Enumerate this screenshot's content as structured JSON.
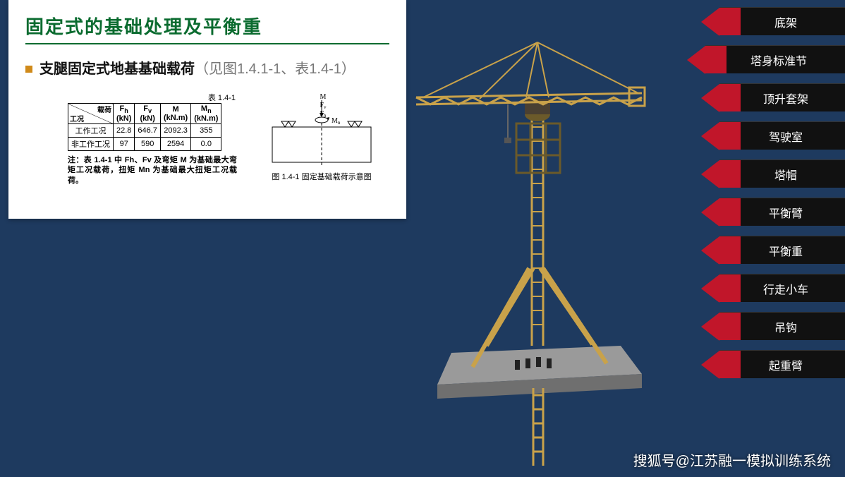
{
  "panel": {
    "title": "固定式的基础处理及平衡重",
    "bullet_main": "支腿固定式地基基础载荷",
    "bullet_grey": "（见图1.4.1-1、表1.4-1）",
    "table_caption": "表 1.4-1",
    "diag_top": "载荷",
    "diag_bottom": "工况",
    "headers": [
      {
        "sym": "F",
        "sub": "h",
        "unit": "(kN)"
      },
      {
        "sym": "F",
        "sub": "v",
        "unit": "(kN)"
      },
      {
        "sym": "M",
        "sub": "",
        "unit": "(kN.m)"
      },
      {
        "sym": "M",
        "sub": "n",
        "unit": "(kN.m)"
      }
    ],
    "rows": [
      {
        "label": "工作工况",
        "vals": [
          "22.8",
          "646.7",
          "2092.3",
          "355"
        ]
      },
      {
        "label": "非工作工况",
        "vals": [
          "97",
          "590",
          "2594",
          "0.0"
        ]
      }
    ],
    "note": "注：表 1.4-1 中 Fh、Fv 及弯矩 M 为基础最大弯矩工况载荷，扭矩 Mn 为基础最大扭矩工况载荷。",
    "diagram_caption": "图 1.4-1 固定基础载荷示意图",
    "diagram_labels": {
      "M": "M",
      "Fh": "F",
      "Fv": "F",
      "Mn": "M"
    }
  },
  "menu": {
    "items": [
      {
        "label": "底架",
        "selected": false
      },
      {
        "label": "塔身标准节",
        "selected": true
      },
      {
        "label": "顶升套架",
        "selected": false
      },
      {
        "label": "驾驶室",
        "selected": false
      },
      {
        "label": "塔帽",
        "selected": false
      },
      {
        "label": "平衡臂",
        "selected": false
      },
      {
        "label": "平衡重",
        "selected": false
      },
      {
        "label": "行走小车",
        "selected": false
      },
      {
        "label": "吊钩",
        "selected": false
      },
      {
        "label": "起重臂",
        "selected": false
      }
    ]
  },
  "watermark": "搜狐号@江苏融一模拟训练系统",
  "colors": {
    "background": "#1e3a5f",
    "panel_bg": "#ffffff",
    "title_color": "#0a6b2f",
    "bullet_color": "#d08a1a",
    "menu_bg": "#111111",
    "menu_accent": "#c1162a",
    "crane_metal": "#c9a24a",
    "crane_dark": "#6b5a2a",
    "platform": "#8a8a8a"
  }
}
